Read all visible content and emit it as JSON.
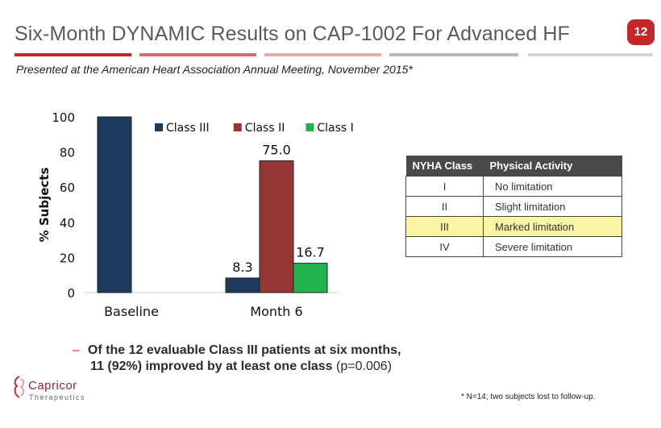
{
  "slide": {
    "title": "Six-Month DYNAMIC Results on CAP-1002 For Advanced HF",
    "page_number": "12",
    "subtitle": "Presented at the American Heart Association Annual Meeting, November 2015*",
    "rule_colors": [
      "#c0282d",
      "#d96a6e",
      "#e9a9ab",
      "#b8b8b8",
      "#d4d4d4"
    ]
  },
  "chart_data": {
    "type": "bar",
    "categories": [
      "Baseline",
      "Month 6"
    ],
    "series": [
      {
        "name": "Class III",
        "color": "#1f3a5f",
        "values": [
          100,
          8.3
        ],
        "labels": [
          "",
          "8.3"
        ]
      },
      {
        "name": "Class II",
        "color": "#943634",
        "values": [
          0,
          75.0
        ],
        "labels": [
          "",
          "75.0"
        ]
      },
      {
        "name": "Class I",
        "color": "#22b14c",
        "values": [
          0,
          16.7
        ],
        "labels": [
          "",
          "16.7"
        ]
      }
    ],
    "title": "",
    "xlabel": "",
    "ylabel": "% Subjects",
    "ylim": [
      0,
      100
    ],
    "yticks": [
      "0",
      "20",
      "40",
      "60",
      "80",
      "100"
    ],
    "grid": false,
    "legend": "top"
  },
  "nyha_table": {
    "headers": [
      "NYHA Class",
      "Physical Activity"
    ],
    "rows": [
      {
        "cls": "I",
        "activity": "No limitation"
      },
      {
        "cls": "II",
        "activity": "Slight limitation"
      },
      {
        "cls": "III",
        "activity": "Marked limitation"
      },
      {
        "cls": "IV",
        "activity": "Severe limitation"
      }
    ]
  },
  "bullet": {
    "dash": "–",
    "line1": "Of the 12 evaluable Class III patients at six months,",
    "line2": "11 (92%) improved by at least one class",
    "pvalue": " (p=0.006)"
  },
  "footnote": "* N=14; two subjects lost to follow-up.",
  "logo": {
    "name": "Capricor",
    "sub": "Therapeutics"
  }
}
